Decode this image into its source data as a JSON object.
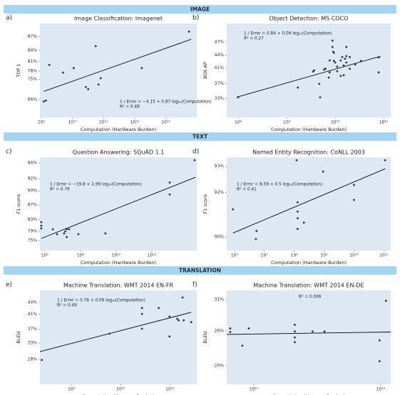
{
  "sections": [
    "IMAGE",
    "TEXT",
    "TRANSLATION"
  ],
  "chart_data": [
    {
      "type": "scatter",
      "panel": "a)",
      "title": "Image Classification: Imagenet",
      "xlabel": "Computation (Hardware Burden)",
      "ylabel": "TOP 1",
      "xscale": "log",
      "yscale": "inverse-error",
      "color": "#333333",
      "fit_color": "#000000",
      "annotation_loc": "lower right",
      "annotation": [
        "1 / Error = −4.15 + 0.87 log₁₀(Computation)",
        "R² = 0.48"
      ],
      "xlim": [
        900000000.0,
        100000000000000.0
      ],
      "ylim": [
        55.3,
        89.4
      ],
      "xticks": [
        {
          "value": 1000000000.0,
          "label": "10⁹"
        },
        {
          "value": 10000000000.0,
          "label": "10¹⁰"
        },
        {
          "value": 100000000000.0,
          "label": "10¹¹"
        },
        {
          "value": 1000000000000.0,
          "label": "10¹²"
        },
        {
          "value": 10000000000000.0,
          "label": "10¹³"
        }
      ],
      "yticks": [
        {
          "value": 66,
          "label": "66%"
        },
        {
          "value": 75,
          "label": "75%"
        },
        {
          "value": 78,
          "label": "78%"
        },
        {
          "value": 81,
          "label": "81%"
        },
        {
          "value": 84,
          "label": "84%"
        },
        {
          "value": 87,
          "label": "87%"
        }
      ],
      "x": [
        1200000000.0,
        1400000000.0,
        1800000000.0,
        5000000000.0,
        11000000000.0,
        27000000000.0,
        32000000000.0,
        56000000000.0,
        69000000000.0,
        81000000000.0,
        1700000000000.0,
        56000000000000.0
      ],
      "values": [
        65,
        65.5,
        80,
        77.5,
        79,
        72,
        71,
        85,
        73,
        75.5,
        79,
        88
      ],
      "fit": {
        "x": [
          1200000000.0,
          66000000000000.0
        ],
        "values": [
          70,
          86.5
        ]
      }
    },
    {
      "type": "scatter",
      "panel": "b)",
      "title": "Object Detection: MS COCO",
      "xlabel": "Computation (Hardware Burden)",
      "ylabel": "BOX AP",
      "xscale": "log",
      "yscale": "inverse-error",
      "color": "#333333",
      "fit_color": "#000000",
      "annotation_loc": "upper left",
      "annotation": [
        "1 / Error = 0.84 + 0.09 log₁₀(Computation)",
        "R² = 0.27"
      ],
      "xlim": [
        58000000.0,
        140000000000.0
      ],
      "ylim": [
        27.6,
        50.9
      ],
      "xticks": [
        {
          "value": 100000000.0,
          "label": "10⁸"
        },
        {
          "value": 1000000000.0,
          "label": "10⁹"
        },
        {
          "value": 10000000000.0,
          "label": "10¹⁰"
        },
        {
          "value": 100000000000.0,
          "label": "10¹¹"
        }
      ],
      "yticks": [
        {
          "value": 33,
          "label": "33%"
        },
        {
          "value": 37,
          "label": "37%"
        },
        {
          "value": 41,
          "label": "41%"
        },
        {
          "value": 44,
          "label": "44%"
        },
        {
          "value": 47,
          "label": "47%"
        }
      ],
      "x": [
        100000000.0,
        1700000000.0,
        3500000000.0,
        3700000000.0,
        4700000000.0,
        4900000000.0,
        5900000000.0,
        6300000000.0,
        7400000000.0,
        7700000000.0,
        7700000000.0,
        8800000000.0,
        8800000000.0,
        9100000000.0,
        9400000000.0,
        9400000000.0,
        10000000000.0,
        11000000000.0,
        11000000000.0,
        13000000000.0,
        13000000000.0,
        14000000000.0,
        15000000000.0,
        15000000000.0,
        16000000000.0,
        17000000000.0,
        17000000000.0,
        17000000000.0,
        20000000000.0,
        20000000000.0,
        26000000000.0,
        34000000000.0,
        79000000000.0,
        79000000000.0
      ],
      "values": [
        33.4,
        36.0,
        40.1,
        40.4,
        37.0,
        33.4,
        40.6,
        40.8,
        38.6,
        39.9,
        42.8,
        47.3,
        45.9,
        44.8,
        44.6,
        42.7,
        42.3,
        40.2,
        41.3,
        39.0,
        42.8,
        43.6,
        41.6,
        39.2,
        43.2,
        45.9,
        43.8,
        42.3,
        43.6,
        40.8,
        41.8,
        42.7,
        43.5,
        39.9
      ],
      "fit": {
        "x": [
          93000000.0,
          87000000000.0
        ],
        "values": [
          33.4,
          43.8
        ]
      }
    },
    {
      "type": "scatter",
      "panel": "c)",
      "title": "Question Answering: SQuAD 1.1",
      "xlabel": "Computation (Hardware Burden)",
      "ylabel": "F1 score",
      "xscale": "log",
      "yscale": "inverse-error",
      "color": "#333333",
      "fit_color": "#000000",
      "annotation_loc": "center left",
      "annotation": [
        "1 / Error = −19.8 + 2.99 log₁₀(Computation)",
        "R² = 0.76"
      ],
      "xlim": [
        530000.0,
        330000000000000.0
      ],
      "ylim": [
        70.0,
        94.6
      ],
      "xticks": [
        {
          "value": 1000000.0,
          "label": "10⁶"
        },
        {
          "value": 100000000.0,
          "label": "10⁸"
        },
        {
          "value": 10000000000.0,
          "label": "10¹⁰"
        },
        {
          "value": 1000000000000.0,
          "label": "10¹²"
        }
      ],
      "yticks": [
        {
          "value": 75,
          "label": "75%"
        },
        {
          "value": 79,
          "label": "79%"
        },
        {
          "value": 83,
          "label": "83%"
        },
        {
          "value": 87,
          "label": "87%"
        },
        {
          "value": 90,
          "label": "90%"
        },
        {
          "value": 92,
          "label": "92%"
        },
        {
          "value": 94,
          "label": "94%"
        }
      ],
      "x": [
        630000.0,
        630000.0,
        630000.0,
        2800000.0,
        4800000.0,
        12000000.0,
        14000000.0,
        17000000.0,
        23000000.0,
        17000000.0,
        76000000.0,
        2500000000.0,
        10000000000000.0,
        10000000000000.0,
        250000000000000.0
      ],
      "values": [
        82.2,
        81.0,
        80.0,
        79.7,
        77.8,
        78.1,
        78.9,
        79.7,
        79.7,
        76.6,
        77.8,
        78.1,
        91.4,
        89.3,
        94.3
      ],
      "fit": {
        "x": [
          630000.0,
          280000000000000.0
        ],
        "values": [
          76.0,
          92.2
        ]
      }
    },
    {
      "type": "scatter",
      "panel": "d)",
      "title": "Named Entity Recognition: CoNLL 2003",
      "xlabel": "Computation (Hardware Burden)",
      "ylabel": "F1 score",
      "xscale": "log",
      "yscale": "inverse-error",
      "color": "#333333",
      "fit_color": "#000000",
      "annotation_loc": "center left",
      "annotation": [
        "1 / Error = 8.59 + 0.5 log₁₀(Computation)",
        "R² = 0.41"
      ],
      "xlim": [
        550000.0,
        170000000000.0
      ],
      "ylim": [
        89.3,
        93.3
      ],
      "xticks": [
        {
          "value": 1000000.0,
          "label": "10⁶"
        },
        {
          "value": 10000000.0,
          "label": "10⁷"
        },
        {
          "value": 100000000.0,
          "label": "10⁸"
        },
        {
          "value": 1000000000.0,
          "label": "10⁹"
        },
        {
          "value": 10000000000.0,
          "label": "10¹⁰"
        },
        {
          "value": 100000000000.0,
          "label": "10¹¹"
        }
      ],
      "yticks": [
        {
          "value": 90,
          "label": "90%"
        },
        {
          "value": 92,
          "label": "92%"
        },
        {
          "value": 93,
          "label": "93%"
        }
      ],
      "x": [
        890000.0,
        5200000.0,
        5500000.0,
        120000000.0,
        130000000.0,
        130000000.0,
        130000000.0,
        130000000.0,
        210000000.0,
        930000000.0,
        10000000000.0,
        10000000000.0,
        110000000000.0
      ],
      "values": [
        91.3,
        89.9,
        90.3,
        93.2,
        91.6,
        91.2,
        90.9,
        90.4,
        90.7,
        92.8,
        92.3,
        91.7,
        93.2
      ],
      "fit": {
        "x": [
          890000.0,
          110000000000.0
        ],
        "values": [
          90.2,
          92.9
        ]
      }
    },
    {
      "type": "scatter",
      "panel": "e)",
      "title": "Machine Translation: WMT 2014 EN-FR",
      "xlabel": "Computation (Harware Burden)",
      "ylabel": "BLEU",
      "xscale": "log",
      "yscale": "inverse-error",
      "color": "#333333",
      "fit_color": "#000000",
      "annotation_loc": "upper left",
      "annotation": [
        "1 / Error = 0.76 + 0.09 log₁₀(Computation)",
        "R² = 0.49"
      ],
      "xlim": [
        230000000.0,
        350000000000.0
      ],
      "ylim": [
        19.6,
        46.9
      ],
      "xticks": [
        {
          "value": 1000000000.0,
          "label": "10⁹"
        },
        {
          "value": 10000000000.0,
          "label": "10¹⁰"
        },
        {
          "value": 100000000000.0,
          "label": "10¹¹"
        }
      ],
      "yticks": [
        {
          "value": 28,
          "label": "28%"
        },
        {
          "value": 33,
          "label": "33%"
        },
        {
          "value": 37,
          "label": "37%"
        },
        {
          "value": 41,
          "label": "41%"
        },
        {
          "value": 44,
          "label": "44%"
        }
      ],
      "x": [
        250000000.0,
        5900000000.0,
        27000000000.0,
        27000000000.0,
        27000000000.0,
        59000000000.0,
        98000000000.0,
        98000000000.0,
        140000000000.0,
        150000000000.0,
        180000000000.0,
        190000000000.0,
        270000000000.0
      ],
      "values": [
        27.8,
        35.7,
        42.6,
        41.1,
        37.1,
        42.6,
        40.4,
        34.9,
        39.8,
        39.4,
        45.2,
        39.4,
        38.9
      ],
      "fit": {
        "x": [
          230000000.0,
          270000000000.0
        ],
        "values": [
          30.4,
          41.5
        ]
      }
    },
    {
      "type": "scatter",
      "panel": "f)",
      "title": "Machine Translation: WMT 2014 EN-DE",
      "xlabel": "Computation (Harware Burden)",
      "ylabel": "BLEU",
      "xscale": "log",
      "yscale": "inverse-error",
      "color": "#333333",
      "fit_color": "#000000",
      "annotation_loc": "upper center",
      "annotation": [
        "R² = 0.006"
      ],
      "xlim": [
        6100000000.0,
        120000000000.0
      ],
      "ylim": [
        16.6,
        32.4
      ],
      "xticks": [
        {
          "value": 10000000000.0,
          "label": "10¹⁰"
        },
        {
          "value": 100000000000.0,
          "label": "10¹¹"
        }
      ],
      "yticks": [
        {
          "value": 20,
          "label": "20%"
        },
        {
          "value": 26,
          "label": "26%"
        },
        {
          "value": 31,
          "label": "31%"
        }
      ],
      "x": [
        6500000000.0,
        6500000000.0,
        9100000000.0,
        8100000000.0,
        21000000000.0,
        21000000000.0,
        21000000000.0,
        21000000000.0,
        29000000000.0,
        36000000000.0,
        98000000000.0,
        98000000000.0,
        110000000000.0
      ],
      "values": [
        26.4,
        25.8,
        26.4,
        23.5,
        27.0,
        25.9,
        24.9,
        24.1,
        25.9,
        25.9,
        24.4,
        20.8,
        30.8
      ],
      "fit": {
        "x": [
          6100000000.0,
          120000000000.0
        ],
        "values": [
          25.4,
          25.8
        ]
      }
    }
  ]
}
